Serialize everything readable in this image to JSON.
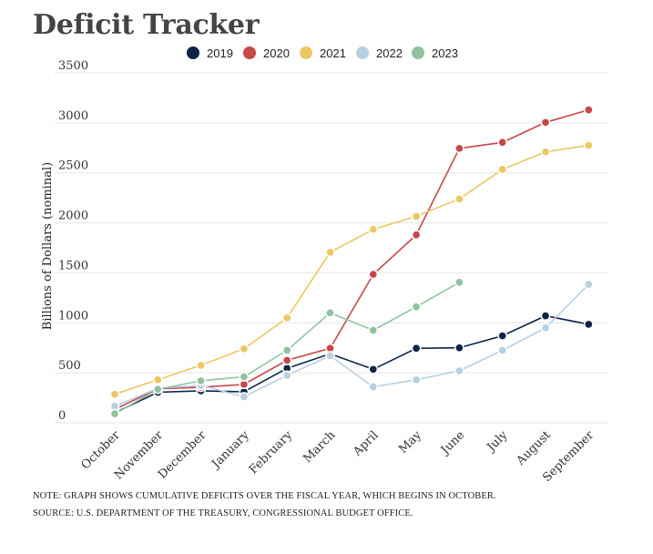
{
  "page": {
    "title": "Deficit Tracker",
    "notes": [
      "NOTE: GRAPH SHOWS CUMULATIVE DEFICITS OVER THE FISCAL YEAR, WHICH BEGINS IN OCTOBER.",
      "SOURCE: U.S. DEPARTMENT OF THE TREASURY, CONGRESSIONAL BUDGET OFFICE."
    ]
  },
  "chart_data": {
    "type": "line",
    "title": "Deficit Tracker",
    "xlabel": "",
    "ylabel": "Billions of Dollars (nominal)",
    "ylim": [
      0,
      3500
    ],
    "yticks": [
      0,
      500,
      1000,
      1500,
      2000,
      2500,
      3000,
      3500
    ],
    "grid": "horizontal",
    "legend_position": "top",
    "categories": [
      "October",
      "November",
      "December",
      "January",
      "February",
      "March",
      "April",
      "May",
      "June",
      "July",
      "August",
      "September"
    ],
    "series": [
      {
        "name": "2019",
        "color": "#0b2447",
        "values": [
          100,
          305,
          320,
          310,
          545,
          690,
          535,
          745,
          750,
          870,
          1070,
          985
        ]
      },
      {
        "name": "2020",
        "color": "#c8474a",
        "values": [
          135,
          340,
          355,
          385,
          625,
          745,
          1485,
          1880,
          2745,
          2805,
          3005,
          3130
        ]
      },
      {
        "name": "2021",
        "color": "#ecc764",
        "values": [
          285,
          430,
          575,
          740,
          1050,
          1705,
          1935,
          2065,
          2240,
          2535,
          2710,
          2775
        ]
      },
      {
        "name": "2022",
        "color": "#b7d0e2",
        "values": [
          165,
          345,
          375,
          260,
          475,
          670,
          360,
          430,
          520,
          725,
          950,
          1385
        ]
      },
      {
        "name": "2023",
        "color": "#8fc3a0",
        "values": [
          90,
          335,
          420,
          460,
          725,
          1100,
          925,
          1160,
          1405,
          null,
          null,
          null
        ]
      }
    ]
  }
}
